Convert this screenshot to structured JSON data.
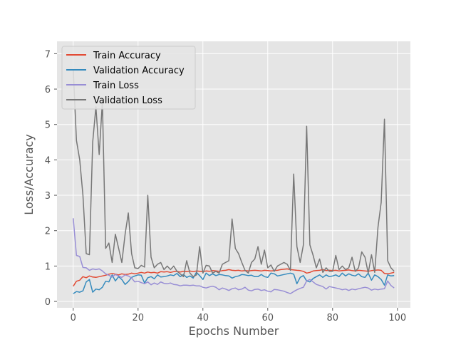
{
  "chart_data": {
    "type": "line",
    "title": "",
    "xlabel": "Epochs Number",
    "ylabel": "Loss/Accuracy",
    "xlim": [
      -5,
      104
    ],
    "ylim": [
      -0.18,
      7.35
    ],
    "xticks": [
      0,
      20,
      40,
      60,
      80,
      100
    ],
    "yticks": [
      0,
      1,
      2,
      3,
      4,
      5,
      6,
      7
    ],
    "grid": true,
    "style": "ggplot",
    "legend_position": "upper-left",
    "x": [
      0,
      1,
      2,
      3,
      4,
      5,
      6,
      7,
      8,
      9,
      10,
      11,
      12,
      13,
      14,
      15,
      16,
      17,
      18,
      19,
      20,
      21,
      22,
      23,
      24,
      25,
      26,
      27,
      28,
      29,
      30,
      31,
      32,
      33,
      34,
      35,
      36,
      37,
      38,
      39,
      40,
      41,
      42,
      43,
      44,
      45,
      46,
      47,
      48,
      49,
      50,
      51,
      52,
      53,
      54,
      55,
      56,
      57,
      58,
      59,
      60,
      61,
      62,
      63,
      64,
      65,
      66,
      67,
      68,
      69,
      70,
      71,
      72,
      73,
      74,
      75,
      76,
      77,
      78,
      79,
      80,
      81,
      82,
      83,
      84,
      85,
      86,
      87,
      88,
      89,
      90,
      91,
      92,
      93,
      94,
      95,
      96,
      97,
      98,
      99
    ],
    "series": [
      {
        "name": "Train Accuracy",
        "color": "#E24A33",
        "values": [
          0.43,
          0.57,
          0.6,
          0.7,
          0.67,
          0.72,
          0.69,
          0.68,
          0.7,
          0.72,
          0.74,
          0.77,
          0.79,
          0.77,
          0.75,
          0.78,
          0.76,
          0.77,
          0.8,
          0.78,
          0.8,
          0.82,
          0.8,
          0.83,
          0.81,
          0.82,
          0.8,
          0.84,
          0.83,
          0.84,
          0.82,
          0.84,
          0.85,
          0.83,
          0.85,
          0.84,
          0.86,
          0.84,
          0.86,
          0.85,
          0.84,
          0.86,
          0.85,
          0.87,
          0.86,
          0.85,
          0.87,
          0.88,
          0.9,
          0.88,
          0.87,
          0.88,
          0.86,
          0.87,
          0.86,
          0.87,
          0.88,
          0.87,
          0.86,
          0.88,
          0.87,
          0.86,
          0.87,
          0.88,
          0.9,
          0.91,
          0.92,
          0.9,
          0.89,
          0.88,
          0.87,
          0.85,
          0.8,
          0.82,
          0.86,
          0.87,
          0.88,
          0.9,
          0.87,
          0.88,
          0.87,
          0.88,
          0.86,
          0.87,
          0.88,
          0.89,
          0.87,
          0.86,
          0.88,
          0.87,
          0.86,
          0.85,
          0.87,
          0.88,
          0.89,
          0.88,
          0.79,
          0.78,
          0.8,
          0.82
        ]
      },
      {
        "name": "Validation Accuracy",
        "color": "#348ABD",
        "values": [
          0.22,
          0.28,
          0.26,
          0.3,
          0.55,
          0.62,
          0.26,
          0.35,
          0.33,
          0.4,
          0.57,
          0.55,
          0.75,
          0.58,
          0.7,
          0.62,
          0.48,
          0.56,
          0.68,
          0.72,
          0.75,
          0.74,
          0.52,
          0.67,
          0.7,
          0.64,
          0.75,
          0.69,
          0.7,
          0.72,
          0.75,
          0.73,
          0.79,
          0.7,
          0.76,
          0.68,
          0.72,
          0.66,
          0.82,
          0.73,
          0.62,
          0.8,
          0.73,
          0.78,
          0.73,
          0.76,
          0.75,
          0.73,
          0.72,
          0.66,
          0.7,
          0.72,
          0.76,
          0.75,
          0.73,
          0.74,
          0.7,
          0.7,
          0.76,
          0.7,
          0.68,
          0.8,
          0.78,
          0.72,
          0.74,
          0.76,
          0.78,
          0.8,
          0.77,
          0.5,
          0.68,
          0.73,
          0.58,
          0.55,
          0.65,
          0.7,
          0.75,
          0.68,
          0.75,
          0.7,
          0.72,
          0.75,
          0.7,
          0.8,
          0.72,
          0.78,
          0.74,
          0.72,
          0.78,
          0.7,
          0.68,
          0.8,
          0.6,
          0.75,
          0.7,
          0.62,
          0.46,
          0.75,
          0.72,
          0.73
        ]
      },
      {
        "name": "Train Loss",
        "color": "#988ED5",
        "values": [
          2.35,
          1.3,
          1.27,
          0.96,
          0.95,
          0.88,
          0.92,
          0.9,
          0.92,
          0.86,
          0.78,
          0.74,
          0.69,
          0.76,
          0.72,
          0.68,
          0.75,
          0.72,
          0.66,
          0.55,
          0.57,
          0.53,
          0.5,
          0.55,
          0.47,
          0.52,
          0.48,
          0.55,
          0.51,
          0.5,
          0.52,
          0.48,
          0.47,
          0.44,
          0.46,
          0.46,
          0.45,
          0.46,
          0.44,
          0.44,
          0.4,
          0.38,
          0.41,
          0.43,
          0.4,
          0.33,
          0.38,
          0.35,
          0.31,
          0.36,
          0.38,
          0.33,
          0.35,
          0.4,
          0.32,
          0.3,
          0.34,
          0.35,
          0.31,
          0.33,
          0.29,
          0.27,
          0.34,
          0.33,
          0.31,
          0.29,
          0.25,
          0.22,
          0.28,
          0.33,
          0.37,
          0.4,
          0.58,
          0.62,
          0.55,
          0.48,
          0.45,
          0.42,
          0.35,
          0.42,
          0.4,
          0.38,
          0.36,
          0.33,
          0.35,
          0.31,
          0.35,
          0.33,
          0.36,
          0.38,
          0.4,
          0.38,
          0.32,
          0.35,
          0.33,
          0.35,
          0.36,
          0.58,
          0.45,
          0.38
        ]
      },
      {
        "name": "Validation Loss",
        "color": "#777777",
        "values": [
          6.55,
          4.55,
          4.0,
          3.0,
          1.35,
          1.32,
          4.5,
          5.5,
          4.15,
          5.65,
          1.5,
          1.65,
          1.1,
          1.9,
          1.5,
          1.1,
          1.9,
          2.5,
          1.35,
          0.95,
          0.93,
          1.02,
          0.97,
          3.0,
          1.25,
          0.95,
          1.05,
          1.1,
          0.9,
          1.0,
          0.9,
          1.0,
          0.85,
          0.78,
          0.7,
          1.15,
          0.8,
          0.7,
          0.75,
          1.55,
          0.8,
          1.02,
          1.0,
          0.8,
          0.85,
          0.8,
          1.05,
          1.1,
          1.15,
          2.33,
          1.5,
          1.35,
          1.1,
          0.88,
          0.8,
          1.1,
          1.2,
          1.55,
          1.05,
          1.45,
          0.95,
          1.03,
          0.85,
          1.0,
          1.05,
          1.1,
          1.05,
          0.88,
          3.6,
          1.55,
          1.1,
          1.6,
          4.95,
          1.6,
          1.3,
          0.95,
          1.2,
          0.82,
          0.95,
          0.85,
          0.85,
          1.3,
          0.9,
          1.0,
          0.9,
          0.95,
          1.25,
          0.85,
          0.95,
          1.4,
          1.25,
          0.8,
          1.32,
          0.82,
          2.1,
          2.8,
          5.15,
          1.15,
          0.95,
          0.85
        ]
      }
    ]
  }
}
